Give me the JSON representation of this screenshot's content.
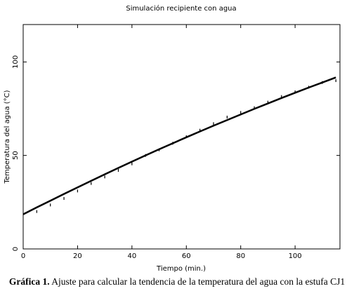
{
  "chart_data": {
    "type": "line",
    "title": "Simulación recipiente con agua",
    "x_label": "Tiempo (min.)",
    "y_label": "Temperatura del agua (°C)",
    "x": [
      0,
      5,
      10,
      15,
      20,
      25,
      30,
      35,
      40,
      45,
      50,
      55,
      60,
      65,
      70,
      75,
      80,
      85,
      90,
      95,
      100,
      105,
      110,
      115
    ],
    "series": [
      {
        "style": "line",
        "color": "#000000",
        "values": [
          18.5,
          22.2,
          25.8,
          29.4,
          32.9,
          36.4,
          39.9,
          43.3,
          46.7,
          50.0,
          53.3,
          56.5,
          59.7,
          62.8,
          65.9,
          68.9,
          71.9,
          74.9,
          77.8,
          80.7,
          83.5,
          86.3,
          89.0,
          91.7
        ]
      },
      {
        "style": "marker",
        "color": "#000000",
        "values": [
          null,
          20,
          23.5,
          27,
          31,
          35,
          38.5,
          42,
          45.5,
          50,
          53,
          56.5,
          60,
          63.5,
          67,
          70.5,
          73,
          75.5,
          78.5,
          81.5,
          84,
          86.5,
          89,
          90
        ]
      }
    ],
    "xlim": [
      0,
      116.5
    ],
    "ylim": [
      0,
      120
    ],
    "xticks": [
      0,
      20,
      40,
      60,
      80,
      100
    ],
    "yticks": [
      0,
      50,
      100
    ]
  },
  "caption": {
    "label": "Gráfica 1.",
    "text": "Ajuste para calcular la tendencia de la temperatura del agua con la estufa CJ1"
  }
}
